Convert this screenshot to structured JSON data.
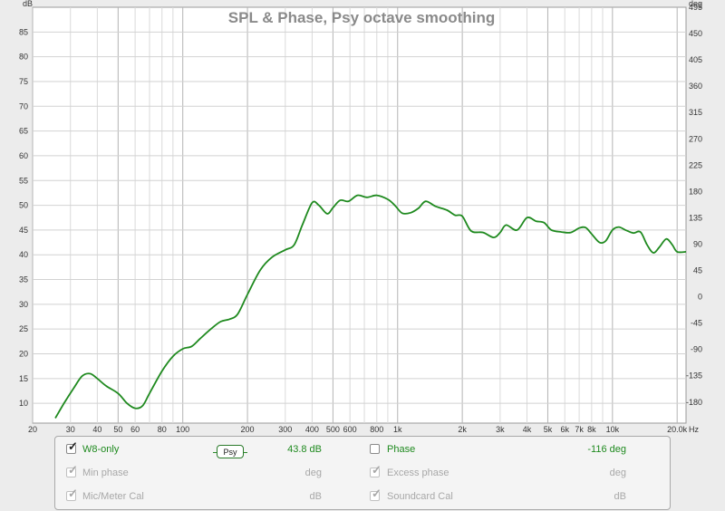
{
  "chart_data": {
    "type": "line",
    "title": "SPL & Phase, Psy octave smoothing",
    "y_left_unit": "dB",
    "y_right_unit": "deg",
    "x_unit": "Hz",
    "x_scale": "log",
    "xlim": [
      20,
      22000
    ],
    "ylim": [
      6,
      90
    ],
    "y_right_lim": [
      -216,
      495
    ],
    "grid": true,
    "y_ticks": [
      10,
      15,
      20,
      25,
      30,
      35,
      40,
      45,
      50,
      55,
      60,
      65,
      70,
      75,
      80,
      85
    ],
    "y_right_ticks": [
      -180,
      -135,
      -90,
      -45,
      0,
      45,
      90,
      135,
      180,
      225,
      270,
      315,
      360,
      405,
      450,
      495
    ],
    "x_ticks": [
      {
        "v": 20,
        "label": "20"
      },
      {
        "v": 30,
        "label": "30"
      },
      {
        "v": 40,
        "label": "40"
      },
      {
        "v": 50,
        "label": "50"
      },
      {
        "v": 60,
        "label": "60"
      },
      {
        "v": 80,
        "label": "80"
      },
      {
        "v": 100,
        "label": "100"
      },
      {
        "v": 200,
        "label": "200"
      },
      {
        "v": 300,
        "label": "300"
      },
      {
        "v": 400,
        "label": "400"
      },
      {
        "v": 500,
        "label": "500"
      },
      {
        "v": 600,
        "label": "600"
      },
      {
        "v": 800,
        "label": "800"
      },
      {
        "v": 1000,
        "label": "1k"
      },
      {
        "v": 2000,
        "label": "2k"
      },
      {
        "v": 3000,
        "label": "3k"
      },
      {
        "v": 4000,
        "label": "4k"
      },
      {
        "v": 5000,
        "label": "5k"
      },
      {
        "v": 6000,
        "label": "6k"
      },
      {
        "v": 7000,
        "label": "7k"
      },
      {
        "v": 8000,
        "label": "8k"
      },
      {
        "v": 10000,
        "label": "10k"
      },
      {
        "v": 20000,
        "label": "20.0k"
      }
    ],
    "series": [
      {
        "name": "W8-only",
        "color": "#1f8a1f",
        "points": [
          [
            25.5,
            7
          ],
          [
            28,
            10
          ],
          [
            31,
            13
          ],
          [
            34,
            15.5
          ],
          [
            37,
            16
          ],
          [
            40,
            15
          ],
          [
            44,
            13.5
          ],
          [
            50,
            12
          ],
          [
            55,
            10
          ],
          [
            60,
            9
          ],
          [
            65,
            9.5
          ],
          [
            70,
            12
          ],
          [
            80,
            16.5
          ],
          [
            90,
            19.5
          ],
          [
            100,
            21
          ],
          [
            110,
            21.5
          ],
          [
            120,
            23
          ],
          [
            135,
            25
          ],
          [
            150,
            26.5
          ],
          [
            165,
            27
          ],
          [
            180,
            28
          ],
          [
            200,
            32
          ],
          [
            230,
            37
          ],
          [
            260,
            39.5
          ],
          [
            300,
            41
          ],
          [
            330,
            42
          ],
          [
            360,
            46
          ],
          [
            400,
            50.5
          ],
          [
            430,
            50
          ],
          [
            470,
            48.3
          ],
          [
            500,
            49.5
          ],
          [
            540,
            51
          ],
          [
            590,
            50.8
          ],
          [
            650,
            52
          ],
          [
            720,
            51.6
          ],
          [
            800,
            52
          ],
          [
            900,
            51.2
          ],
          [
            970,
            50
          ],
          [
            1050,
            48.4
          ],
          [
            1150,
            48.5
          ],
          [
            1250,
            49.4
          ],
          [
            1350,
            50.8
          ],
          [
            1500,
            49.8
          ],
          [
            1700,
            49
          ],
          [
            1850,
            48
          ],
          [
            2000,
            47.8
          ],
          [
            2200,
            44.8
          ],
          [
            2500,
            44.5
          ],
          [
            2800,
            43.5
          ],
          [
            3000,
            44.5
          ],
          [
            3200,
            46
          ],
          [
            3600,
            45
          ],
          [
            4000,
            47.5
          ],
          [
            4400,
            46.8
          ],
          [
            4800,
            46.5
          ],
          [
            5200,
            45
          ],
          [
            5800,
            44.6
          ],
          [
            6400,
            44.5
          ],
          [
            7000,
            45.4
          ],
          [
            7500,
            45.5
          ],
          [
            8000,
            44.2
          ],
          [
            8700,
            42.5
          ],
          [
            9300,
            42.8
          ],
          [
            10000,
            45
          ],
          [
            10700,
            45.6
          ],
          [
            11500,
            45
          ],
          [
            12500,
            44.4
          ],
          [
            13500,
            44.6
          ],
          [
            14500,
            42
          ],
          [
            15500,
            40.4
          ],
          [
            16500,
            41.5
          ],
          [
            17800,
            43.2
          ],
          [
            19000,
            42
          ],
          [
            20000,
            40.6
          ],
          [
            22000,
            40.6
          ]
        ]
      }
    ]
  },
  "legend": {
    "rows": [
      {
        "left": {
          "label": "W8-only",
          "checked": true,
          "enabled": true,
          "value": "43.8 dB"
        },
        "smoothing": "Psy",
        "right": {
          "label": "Phase",
          "checked": false,
          "enabled": true,
          "value": "-116 deg"
        }
      },
      {
        "left": {
          "label": "Min phase",
          "checked": true,
          "enabled": false,
          "value": "deg"
        },
        "right": {
          "label": "Excess phase",
          "checked": true,
          "enabled": false,
          "value": "deg"
        }
      },
      {
        "left": {
          "label": "Mic/Meter Cal",
          "checked": true,
          "enabled": false,
          "value": "dB"
        },
        "right": {
          "label": "Soundcard Cal",
          "checked": true,
          "enabled": false,
          "value": "dB"
        }
      }
    ],
    "colors": {
      "active": "#1f8a1f",
      "disabled": "#a8a8a8",
      "text": "#222222"
    }
  }
}
